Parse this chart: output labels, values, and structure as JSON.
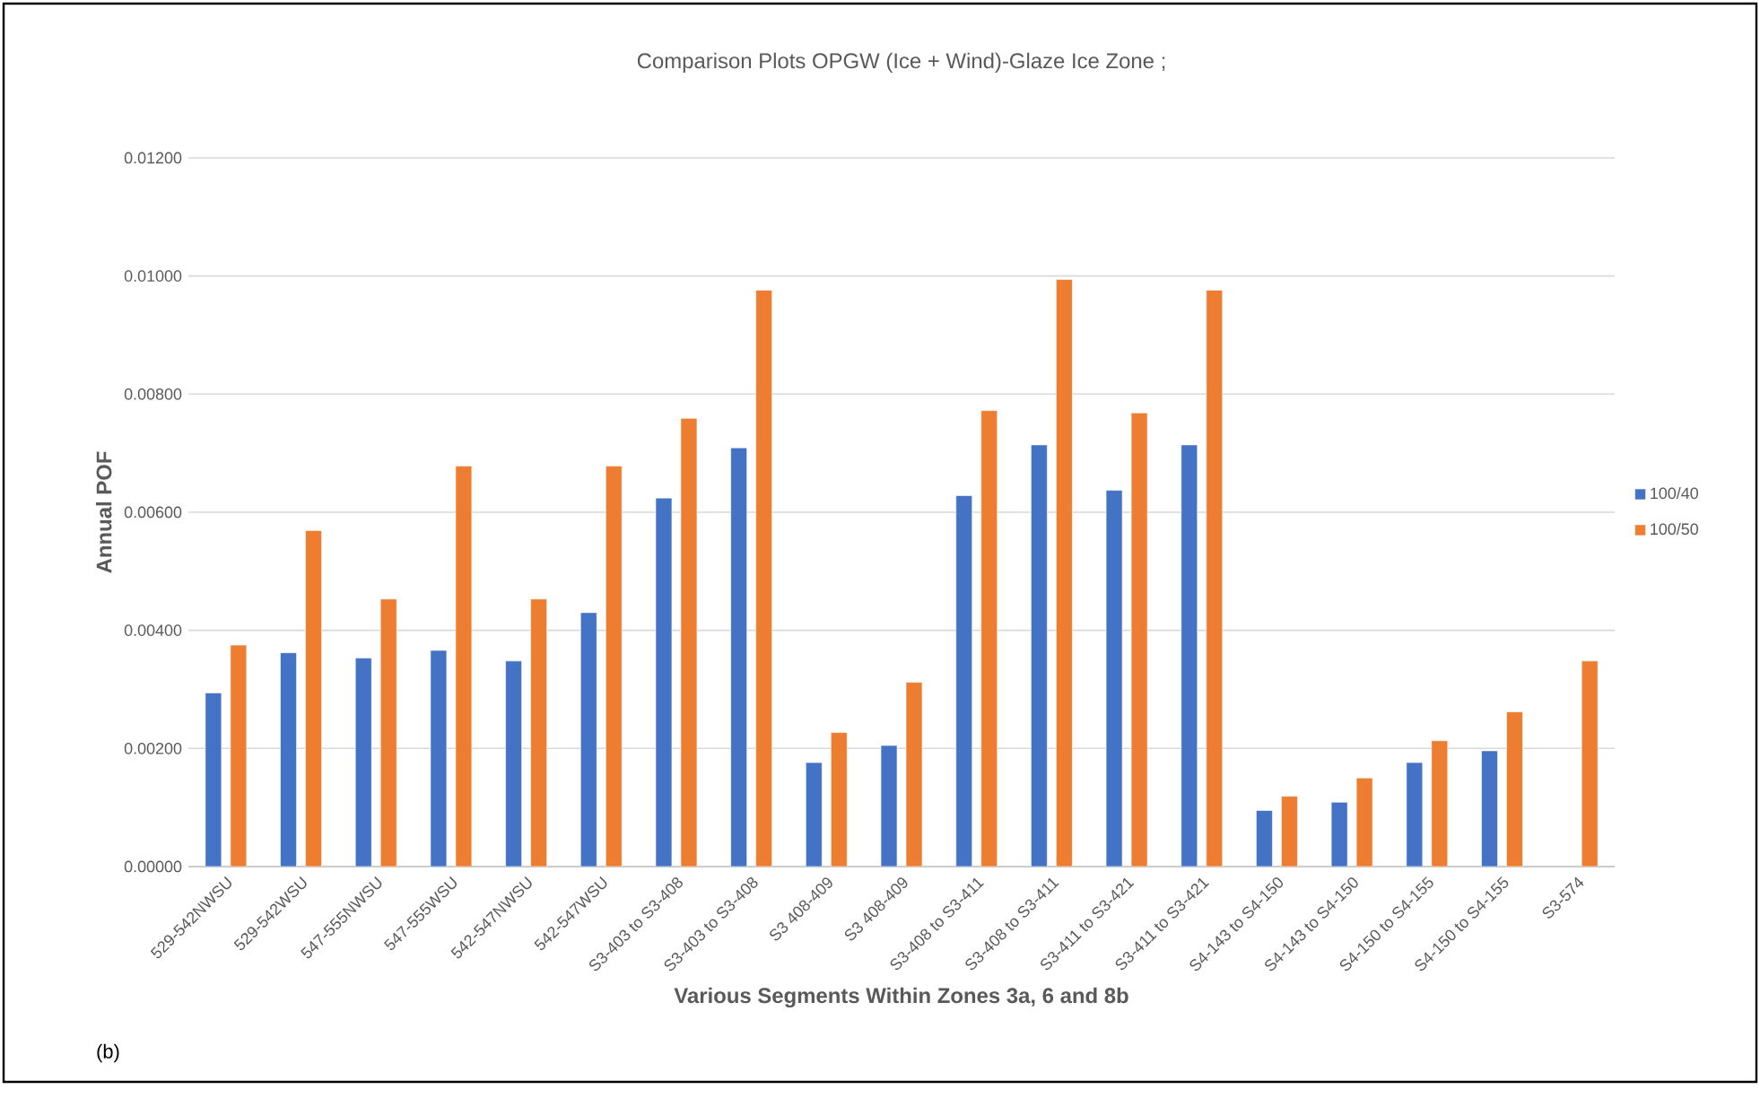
{
  "chart_data": {
    "type": "bar",
    "title": "Comparison Plots  OPGW (Ice + Wind)-Glaze  Ice Zone ;",
    "xlabel": "Various Segments  Within Zones 3a, 6 and 8b",
    "ylabel": "Annual POF",
    "categories": [
      "529-542NWSU",
      "529-542WSU",
      "547-555NWSU",
      "547-555WSU",
      "542-547NWSU",
      "542-547WSU",
      "S3-403 to S3-408",
      "S3-403 to S3-408",
      "S3 408-409",
      "S3 408-409",
      "S3-408 to S3-411",
      "S3-408 to S3-411",
      "S3-411 to S3-421",
      "S3-411 to S3-421",
      "S4-143 to S4-150",
      "S4-143 to S4-150",
      "S4-150 to S4-155",
      "S4-150 to S4-155",
      "S3-574"
    ],
    "series": [
      {
        "name": "100/40",
        "color": "#4472c4",
        "values": [
          0.00294,
          0.00362,
          0.00353,
          0.00366,
          0.00348,
          0.0043,
          0.00624,
          0.00709,
          0.00176,
          0.00205,
          0.00628,
          0.00714,
          0.00637,
          0.00714,
          0.00095,
          0.00109,
          0.00176,
          0.00196,
          null
        ]
      },
      {
        "name": "100/50",
        "color": "#ed7d31",
        "values": [
          0.00375,
          0.00569,
          0.00453,
          0.00678,
          0.00453,
          0.00678,
          0.00759,
          0.00976,
          0.00227,
          0.00312,
          0.00772,
          0.00994,
          0.00768,
          0.00976,
          0.00119,
          0.0015,
          0.00213,
          0.00262,
          0.00348
        ]
      }
    ],
    "ylim": [
      0,
      0.012
    ],
    "yticks": [
      {
        "value": 0,
        "label": "0.00000"
      },
      {
        "value": 0.002,
        "label": "0.00200"
      },
      {
        "value": 0.004,
        "label": "0.00400"
      },
      {
        "value": 0.006,
        "label": "0.00600"
      },
      {
        "value": 0.008,
        "label": "0.00800"
      },
      {
        "value": 0.01,
        "label": "0.01000"
      },
      {
        "value": 0.012,
        "label": "0.01200"
      }
    ],
    "grid": "y",
    "legend": "right",
    "annotations": [
      "(b)"
    ]
  }
}
